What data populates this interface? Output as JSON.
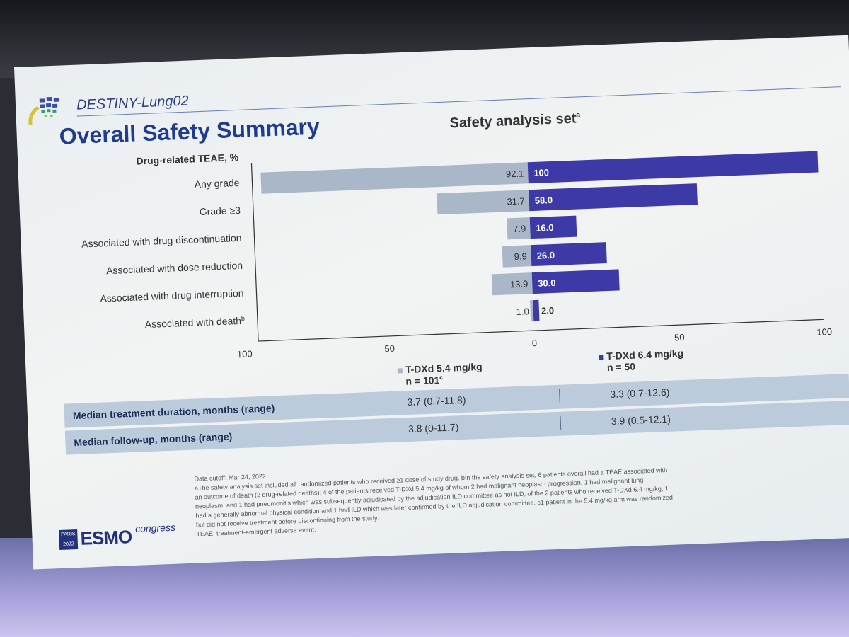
{
  "header": {
    "study_name": "DESTINY-Lung02",
    "title": "Overall Safety Summary",
    "subtitle": "Safety analysis set",
    "subtitle_sup": "a"
  },
  "chart_data": {
    "type": "bar",
    "orientation": "horizontal-butterfly",
    "group_heading": "Drug-related TEAE, %",
    "categories": [
      "Any grade",
      "Grade ≥3",
      "Associated with drug discontinuation",
      "Associated with dose reduction",
      "Associated with drug interruption",
      "Associated with death"
    ],
    "category_sup": [
      "",
      "",
      "",
      "",
      "",
      "b"
    ],
    "series": [
      {
        "name": "T-DXd 5.4 mg/kg",
        "side": "left",
        "color": "#aab7c9",
        "values": [
          92.1,
          31.7,
          7.9,
          9.9,
          13.9,
          1.0
        ],
        "labels": [
          "92.1",
          "31.7",
          "7.9",
          "9.9",
          "13.9",
          "1.0"
        ]
      },
      {
        "name": "T-DXd 6.4 mg/kg",
        "side": "right",
        "color": "#3d3aa8",
        "values": [
          100,
          58.0,
          16.0,
          26.0,
          30.0,
          2.0
        ],
        "labels": [
          "100",
          "58.0",
          "16.0",
          "26.0",
          "30.0",
          "2.0"
        ]
      }
    ],
    "x_ticks_left": [
      "100",
      "50",
      "0"
    ],
    "x_ticks_right": [
      "50",
      "100"
    ],
    "xlim": [
      0,
      100
    ],
    "legend_position": "bottom"
  },
  "legend": {
    "a_label": "T-DXd 5.4 mg/kg",
    "a_n": "n = 101",
    "a_n_sup": "c",
    "b_label": "T-DXd 6.4 mg/kg",
    "b_n": "n = 50"
  },
  "table": {
    "rows": [
      {
        "label": "Median treatment duration, months (range)",
        "a": "3.7 (0.7-11.8)",
        "b": "3.3 (0.7-12.6)"
      },
      {
        "label": "Median follow-up, months (range)",
        "a": "3.8 (0-11.7)",
        "b": "3.9 (0.5-12.1)"
      }
    ]
  },
  "footnotes": [
    "Data cutoff: Mar 24, 2022.",
    "aThe safety analysis set included all randomized patients who received ≥1 dose of study drug. bIn the safety analysis set, 6 patients overall had a TEAE associated with",
    "an outcome of death (2 drug-related deaths); 4 of the patients received T-DXd 5.4 mg/kg of whom 2 had malignant neoplasm progression, 1 had malignant lung",
    "neoplasm, and 1 had pneumonitis which was subsequently adjudicated by the adjudication ILD committee as not ILD; of the 2 patients who received T-DXd 6.4 mg/kg, 1",
    "had a generally abnormal physical condition and 1 had ILD which was later confirmed by the ILD adjudication committee. c1 patient in the 5.4 mg/kg arm was randomized",
    "but did not receive treatment before discontinuing from the study.",
    "TEAE, treatment-emergent adverse event."
  ],
  "branding": {
    "paris_year": "PARIS 2022",
    "esmo": "ESMO",
    "congress": "congress"
  }
}
